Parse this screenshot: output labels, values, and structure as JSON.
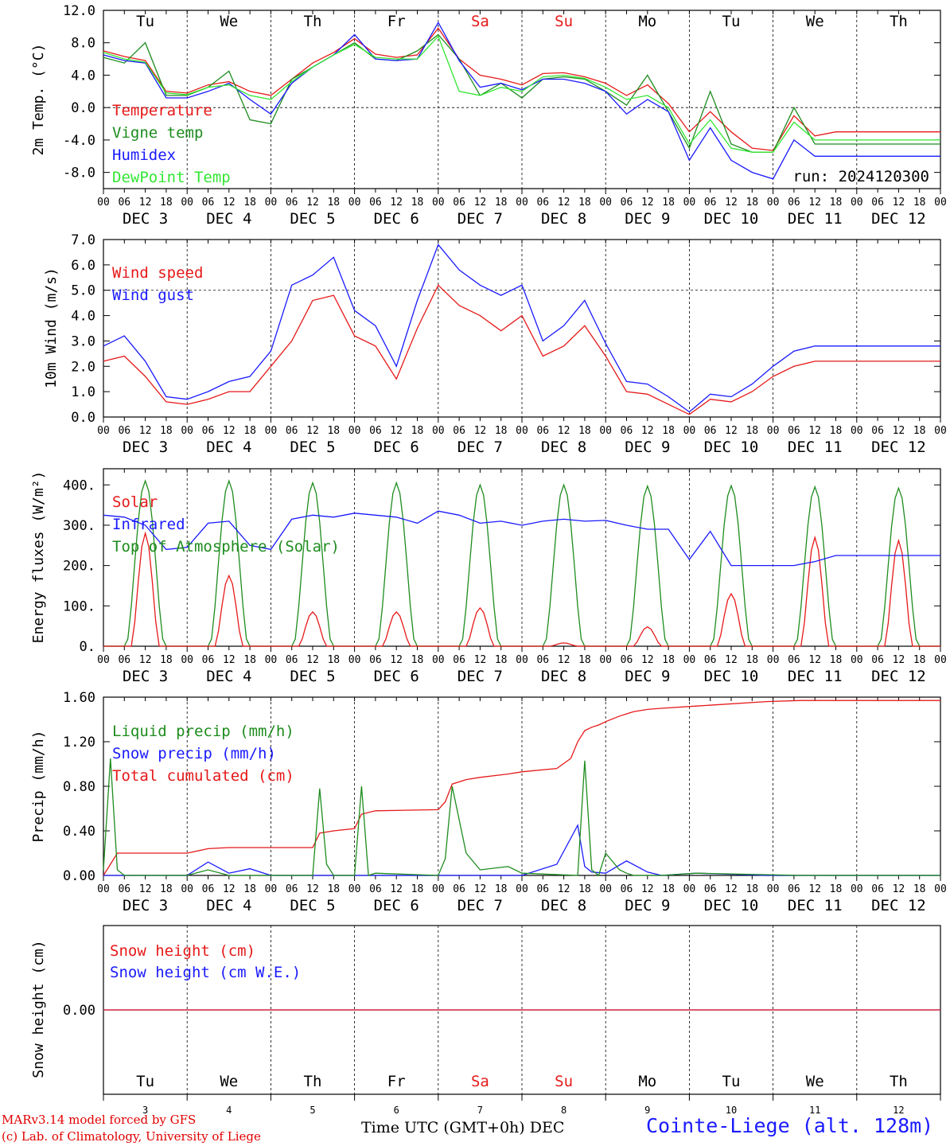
{
  "colors": {
    "red": "#e61919",
    "green": "#1e8c1e",
    "blue": "#1a1aff",
    "lightgreen": "#33e633",
    "black": "#000000"
  },
  "hour_ticks": [
    "00",
    "06",
    "12",
    "18"
  ],
  "final_tick": "00",
  "day_dates": [
    "DEC  3",
    "DEC  4",
    "DEC  5",
    "DEC  6",
    "DEC  7",
    "DEC  8",
    "DEC  9",
    "DEC 10",
    "DEC 11",
    "DEC 12"
  ],
  "weekdays": [
    "Tu",
    "We",
    "Th",
    "Fr",
    "Sa",
    "Su",
    "Mo",
    "Tu",
    "We",
    "Th"
  ],
  "weekday_weekend": [
    false,
    false,
    false,
    false,
    true,
    true,
    false,
    false,
    false,
    false
  ],
  "bottom_day_numbers": [
    "3",
    "4",
    "5",
    "6",
    "7",
    "8",
    "9",
    "10",
    "11",
    "12"
  ],
  "run_label": "run: 2024120300",
  "footer": {
    "model": "MARv3.14 model forced by GFS",
    "lab": "(c) Lab. of Climatology, University of Liege",
    "axis_title": "Time UTC (GMT+0h) DEC",
    "station": "Cointe-Liege (alt. 128m)"
  },
  "chart_data": [
    {
      "type": "line",
      "ylabel": "2m Temp. (°C)",
      "ylim": [
        -10,
        12
      ],
      "yticks": [
        "12.0",
        "8.0",
        "4.0",
        "0.0",
        "-4.0",
        "-8.0"
      ],
      "ytick_values": [
        12,
        8,
        4,
        0,
        -4,
        -8
      ],
      "x_unit": "hours since 00 UTC DEC 3",
      "x": [
        0,
        6,
        12,
        18,
        24,
        30,
        36,
        42,
        48,
        54,
        60,
        66,
        72,
        78,
        84,
        90,
        96,
        102,
        108,
        114,
        120,
        126,
        132,
        138,
        144,
        150,
        156,
        162,
        168,
        174,
        180,
        186,
        192,
        198,
        204,
        210,
        216,
        222,
        228,
        234,
        240
      ],
      "series": [
        {
          "name": "Temperature",
          "color": "red",
          "values": [
            7.0,
            6.3,
            5.8,
            2.0,
            1.8,
            2.8,
            3.2,
            2.0,
            1.5,
            3.5,
            5.5,
            6.8,
            8.5,
            6.6,
            6.2,
            6.5,
            9.8,
            6.0,
            4.0,
            3.5,
            2.8,
            4.2,
            4.3,
            3.8,
            3.0,
            1.5,
            2.8,
            0.5,
            -3.0,
            -0.5,
            -3.0,
            -5.0,
            -5.3,
            -1.0,
            -3.5,
            -3.0,
            -3.0,
            -3.0,
            -3.0,
            -3.0,
            -3.0
          ]
        },
        {
          "name": "Vigne temp",
          "color": "green",
          "values": [
            6.2,
            5.5,
            8.0,
            1.5,
            1.5,
            2.5,
            4.5,
            -1.5,
            -2.0,
            3.5,
            5.0,
            6.5,
            8.0,
            6.0,
            5.8,
            7.0,
            9.0,
            6.0,
            1.5,
            3.0,
            1.2,
            3.5,
            3.8,
            3.5,
            2.0,
            0.3,
            4.0,
            -0.5,
            -5.0,
            2.0,
            -4.5,
            -5.5,
            -5.5,
            0.0,
            -4.5,
            -4.5,
            -4.5,
            -4.5,
            -4.5,
            -4.5,
            -4.5
          ]
        },
        {
          "name": "Humidex",
          "color": "blue",
          "values": [
            6.5,
            5.8,
            5.5,
            1.2,
            1.2,
            2.0,
            3.0,
            1.0,
            -0.8,
            3.0,
            5.0,
            6.5,
            9.0,
            6.0,
            5.8,
            6.0,
            10.5,
            5.8,
            2.5,
            3.0,
            2.2,
            3.5,
            3.5,
            3.0,
            2.0,
            -0.8,
            1.0,
            -0.5,
            -6.5,
            -2.5,
            -6.5,
            -8.0,
            -8.8,
            -4.0,
            -6.0,
            -6.0,
            -6.0,
            -6.0,
            -6.0,
            -6.0,
            -6.0
          ]
        },
        {
          "name": "DewPoint Temp",
          "color": "lightgreen",
          "values": [
            6.8,
            6.0,
            5.6,
            1.8,
            1.6,
            2.5,
            2.8,
            1.5,
            1.0,
            3.2,
            5.0,
            6.5,
            7.8,
            6.2,
            6.0,
            6.0,
            8.8,
            2.0,
            1.5,
            2.5,
            2.0,
            3.8,
            4.0,
            3.6,
            2.5,
            1.0,
            1.5,
            0.0,
            -4.5,
            -1.5,
            -5.0,
            -5.5,
            -5.5,
            -1.8,
            -4.0,
            -4.0,
            -4.0,
            -4.0,
            -4.0,
            -4.0,
            -4.0
          ]
        }
      ]
    },
    {
      "type": "line",
      "ylabel": "10m Wind (m/s)",
      "ylim": [
        0,
        7
      ],
      "yticks": [
        "7.0",
        "6.0",
        "5.0",
        "4.0",
        "3.0",
        "2.0",
        "1.0",
        "0.0"
      ],
      "ytick_values": [
        7,
        6,
        5,
        4,
        3,
        2,
        1,
        0
      ],
      "x_unit": "hours since 00 UTC DEC 3",
      "x": [
        0,
        6,
        12,
        18,
        24,
        30,
        36,
        42,
        48,
        54,
        60,
        66,
        72,
        78,
        84,
        90,
        96,
        102,
        108,
        114,
        120,
        126,
        132,
        138,
        144,
        150,
        156,
        162,
        168,
        174,
        180,
        186,
        192,
        198,
        204,
        210,
        216,
        222,
        228,
        234,
        240
      ],
      "series": [
        {
          "name": "Wind speed",
          "color": "red",
          "values": [
            2.2,
            2.4,
            1.6,
            0.6,
            0.5,
            0.7,
            1.0,
            1.0,
            2.0,
            3.0,
            4.6,
            4.8,
            3.2,
            2.8,
            1.5,
            3.5,
            5.2,
            4.4,
            4.0,
            3.4,
            4.0,
            2.4,
            2.8,
            3.6,
            2.4,
            1.0,
            0.9,
            0.5,
            0.1,
            0.7,
            0.6,
            1.0,
            1.6,
            2.0,
            2.2,
            2.2,
            2.2,
            2.2,
            2.2,
            2.2,
            2.2
          ]
        },
        {
          "name": "Wind gust",
          "color": "blue",
          "values": [
            2.8,
            3.2,
            2.2,
            0.8,
            0.7,
            1.0,
            1.4,
            1.6,
            2.6,
            5.2,
            5.6,
            6.3,
            4.2,
            3.6,
            2.0,
            4.6,
            6.8,
            5.8,
            5.2,
            4.8,
            5.2,
            3.0,
            3.6,
            4.6,
            2.9,
            1.4,
            1.3,
            0.8,
            0.2,
            0.9,
            0.8,
            1.3,
            2.0,
            2.6,
            2.8,
            2.8,
            2.8,
            2.8,
            2.8,
            2.8,
            2.8
          ]
        }
      ]
    },
    {
      "type": "line",
      "ylabel": "Energy fluxes (W/m²)",
      "ylim": [
        0,
        440
      ],
      "yticks": [
        "400.",
        "300.",
        "200.",
        "100.",
        "0."
      ],
      "ytick_values": [
        400,
        300,
        200,
        100,
        0
      ],
      "x_unit": "hours since 00 UTC DEC 3",
      "solar_peaks_by_day": [
        280,
        175,
        85,
        85,
        95,
        8,
        48,
        130,
        270,
        262
      ],
      "toa_peaks_by_day": [
        410,
        410,
        405,
        405,
        400,
        400,
        397,
        398,
        395,
        392
      ],
      "series": [
        {
          "name": "Solar",
          "color": "red",
          "note_values": "see solar_peaks_by_day"
        },
        {
          "name": "Infrared",
          "color": "blue",
          "x": [
            0,
            6,
            12,
            18,
            24,
            30,
            36,
            42,
            48,
            54,
            60,
            66,
            72,
            78,
            84,
            90,
            96,
            102,
            108,
            114,
            120,
            126,
            132,
            138,
            144,
            150,
            156,
            162,
            168,
            174,
            180,
            186,
            192,
            198,
            204,
            210,
            216,
            222,
            228,
            234,
            240
          ],
          "values": [
            325,
            320,
            300,
            240,
            245,
            305,
            310,
            250,
            240,
            315,
            325,
            320,
            330,
            325,
            320,
            305,
            335,
            325,
            305,
            310,
            300,
            310,
            315,
            310,
            312,
            300,
            290,
            290,
            215,
            285,
            200,
            200,
            200,
            200,
            210,
            225,
            225,
            225,
            225,
            225,
            225
          ]
        },
        {
          "name": "Top of Atmosphere (Solar)",
          "color": "green",
          "note_values": "see toa_peaks_by_day"
        }
      ]
    },
    {
      "type": "line",
      "ylabel": "Precip (mm/h)",
      "ylim": [
        0,
        1.6
      ],
      "yticks": [
        "1.60",
        "1.20",
        "0.80",
        "0.40",
        "0.00"
      ],
      "ytick_values": [
        1.6,
        1.2,
        0.8,
        0.4,
        0.0
      ],
      "x_unit": "hours since 00 UTC DEC 3",
      "series": [
        {
          "name": "Liquid precip (mm/h)",
          "color": "green",
          "x": [
            0,
            2,
            4,
            6,
            24,
            30,
            36,
            48,
            60,
            62,
            64,
            66,
            72,
            74,
            76,
            78,
            96,
            98,
            100,
            104,
            108,
            116,
            120,
            136,
            138,
            140,
            142,
            144,
            148,
            150,
            152,
            160,
            170,
            200,
            240
          ],
          "values": [
            0.05,
            1.05,
            0.05,
            0.0,
            0.0,
            0.05,
            0.0,
            0.0,
            0.0,
            0.78,
            0.1,
            0.0,
            0.0,
            0.8,
            0.0,
            0.02,
            0.0,
            0.15,
            0.8,
            0.2,
            0.05,
            0.08,
            0.02,
            0.0,
            1.03,
            0.05,
            0.0,
            0.2,
            0.05,
            0.02,
            0.0,
            0.0,
            0.02,
            0.0,
            0.0
          ]
        },
        {
          "name": "Snow precip (mm/h)",
          "color": "blue",
          "x": [
            0,
            24,
            30,
            36,
            42,
            48,
            96,
            120,
            130,
            136,
            138,
            140,
            144,
            150,
            156,
            160,
            170,
            190,
            240
          ],
          "values": [
            0.0,
            0.0,
            0.12,
            0.02,
            0.06,
            0.0,
            0.0,
            0.0,
            0.1,
            0.45,
            0.08,
            0.03,
            0.02,
            0.13,
            0.03,
            0.0,
            0.02,
            0.0,
            0.0
          ]
        },
        {
          "name": "Total cumulated (cm)",
          "color": "red",
          "x": [
            0,
            2,
            4,
            6,
            24,
            30,
            36,
            48,
            60,
            62,
            66,
            72,
            74,
            78,
            96,
            98,
            100,
            104,
            108,
            116,
            120,
            130,
            134,
            136,
            138,
            140,
            142,
            144,
            148,
            150,
            152,
            156,
            160,
            170,
            190,
            200,
            240
          ],
          "values": [
            0.0,
            0.1,
            0.2,
            0.2,
            0.2,
            0.24,
            0.25,
            0.25,
            0.25,
            0.38,
            0.4,
            0.42,
            0.55,
            0.58,
            0.59,
            0.66,
            0.82,
            0.86,
            0.88,
            0.91,
            0.93,
            0.96,
            1.05,
            1.2,
            1.3,
            1.33,
            1.35,
            1.38,
            1.43,
            1.45,
            1.47,
            1.49,
            1.5,
            1.52,
            1.56,
            1.57,
            1.57
          ]
        }
      ]
    },
    {
      "type": "line",
      "ylabel": "Snow height (cm)",
      "ylim": [
        -1,
        1
      ],
      "yticks": [
        "0.00"
      ],
      "ytick_values": [
        0
      ],
      "x_unit": "hours since 00 UTC DEC 3",
      "series": [
        {
          "name": "Snow height (cm)",
          "color": "red",
          "x": [
            0,
            240
          ],
          "values": [
            0,
            0
          ]
        },
        {
          "name": "Snow height (cm W.E.)",
          "color": "blue",
          "x": [
            0,
            240
          ],
          "values": [
            0,
            0
          ]
        }
      ]
    }
  ]
}
